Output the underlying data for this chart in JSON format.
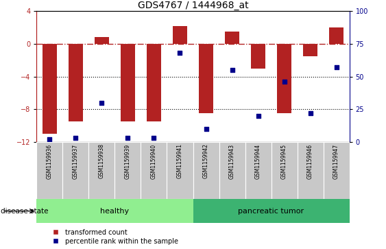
{
  "title": "GDS4767 / 1444968_at",
  "samples": [
    "GSM1159936",
    "GSM1159937",
    "GSM1159938",
    "GSM1159939",
    "GSM1159940",
    "GSM1159941",
    "GSM1159942",
    "GSM1159943",
    "GSM1159944",
    "GSM1159945",
    "GSM1159946",
    "GSM1159947"
  ],
  "transformed_count": [
    -11.0,
    -9.5,
    0.8,
    -9.5,
    -9.5,
    2.2,
    -8.5,
    1.5,
    -3.0,
    -8.5,
    -1.5,
    2.0
  ],
  "percentile_rank": [
    2,
    3,
    30,
    3,
    3,
    68,
    10,
    55,
    20,
    46,
    22,
    57
  ],
  "ylim_left": [
    -12,
    4
  ],
  "ylim_right": [
    0,
    100
  ],
  "bar_color": "#b22222",
  "dot_color": "#00008b",
  "hline_color": "#b22222",
  "grid_color": "#000000",
  "bg_color": "#ffffff",
  "healthy_color": "#90ee90",
  "tumor_color": "#3cb371",
  "disease_label": "disease state",
  "healthy_label": "healthy",
  "tumor_label": "pancreatic tumor",
  "legend_bar_label": "transformed count",
  "legend_dot_label": "percentile rank within the sample",
  "yticks_left": [
    -12,
    -8,
    -4,
    0,
    4
  ],
  "yticks_right": [
    0,
    25,
    50,
    75,
    100
  ],
  "bar_width": 0.55
}
